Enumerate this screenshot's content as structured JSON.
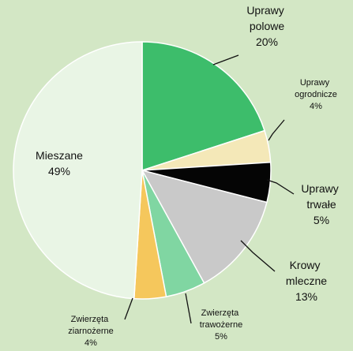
{
  "chart_data": {
    "type": "pie",
    "categories": [
      "Uprawy polowe",
      "Uprawy ogrodnicze",
      "Uprawy trwałe",
      "Krowy mleczne",
      "Zwierzęta trawożerne",
      "Zwierzęta ziarnożerne",
      "Mieszane"
    ],
    "values": [
      20,
      4,
      5,
      13,
      5,
      4,
      49
    ],
    "value_labels": [
      "20%",
      "4%",
      "5%",
      "13%",
      "5%",
      "4%",
      "49%"
    ],
    "colors": [
      "#3dbd6b",
      "#f4e8b8",
      "#050505",
      "#c9c9c9",
      "#80d6a2",
      "#f5c75c",
      "#e9f5e5"
    ]
  }
}
